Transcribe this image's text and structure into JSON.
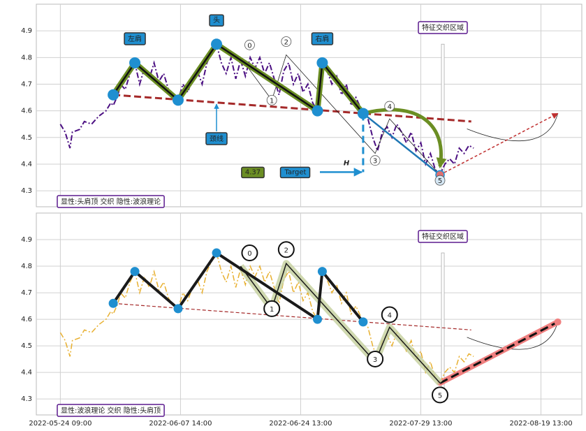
{
  "chart_data": [
    {
      "type": "line",
      "caption": "显性:头肩顶 交织 隐性:波浪理论",
      "labels": {
        "left_shoulder": "左肩",
        "head": "头",
        "right_shoulder": "右肩",
        "neckline": "颈线",
        "zone": "特征交织区域",
        "target_label": "Target",
        "height": "H"
      },
      "target": 4.37,
      "xlim": [
        -10,
        217
      ],
      "ylim": [
        4.24,
        5.0
      ],
      "xticks": [
        0,
        50,
        100,
        150,
        200
      ],
      "yticks": [
        4.3,
        4.4,
        4.5,
        4.6,
        4.7,
        4.8,
        4.9
      ],
      "grid": true,
      "price": {
        "color": "#4b0f82",
        "x": [
          0,
          2,
          4,
          5,
          8,
          10,
          13,
          16,
          19,
          21,
          22,
          24,
          25,
          27,
          29,
          31,
          33,
          35,
          37,
          39,
          41,
          43,
          45,
          47,
          49,
          51,
          53,
          55,
          57,
          59,
          61,
          63,
          65,
          67,
          69,
          71,
          73,
          75,
          77,
          79,
          81,
          83,
          85,
          87,
          89,
          91,
          93,
          95,
          97,
          99,
          101,
          103,
          105,
          107,
          109,
          111,
          113,
          115,
          117,
          119,
          121,
          123,
          126,
          128,
          130,
          132,
          134,
          136,
          138,
          140,
          142,
          144,
          146,
          148,
          150,
          152,
          154,
          156,
          158,
          160,
          162,
          164,
          166,
          168,
          170,
          172
        ],
        "values": [
          4.55,
          4.52,
          4.46,
          4.52,
          4.53,
          4.56,
          4.55,
          4.58,
          4.6,
          4.63,
          4.62,
          4.66,
          4.7,
          4.68,
          4.74,
          4.78,
          4.7,
          4.76,
          4.72,
          4.78,
          4.71,
          4.74,
          4.68,
          4.65,
          4.64,
          4.7,
          4.67,
          4.72,
          4.75,
          4.7,
          4.78,
          4.82,
          4.85,
          4.78,
          4.74,
          4.8,
          4.72,
          4.79,
          4.73,
          4.8,
          4.76,
          4.8,
          4.74,
          4.78,
          4.72,
          4.66,
          4.75,
          4.78,
          4.7,
          4.74,
          4.67,
          4.7,
          4.63,
          4.6,
          4.78,
          4.75,
          4.7,
          4.73,
          4.66,
          4.7,
          4.62,
          4.65,
          4.59,
          4.57,
          4.5,
          4.45,
          4.52,
          4.54,
          4.5,
          4.55,
          4.52,
          4.48,
          4.52,
          4.45,
          4.48,
          4.4,
          4.44,
          4.38,
          4.36,
          4.4,
          4.42,
          4.4,
          4.46,
          4.44,
          4.47,
          4.46
        ]
      },
      "pattern": {
        "color": "#6b8e23",
        "x": [
          22,
          31,
          49,
          65,
          107,
          109,
          126,
          158
        ],
        "values": [
          4.66,
          4.78,
          4.64,
          4.85,
          4.6,
          4.78,
          4.59,
          4.36
        ]
      },
      "neckline": {
        "color": "#a52a2a",
        "x": [
          22,
          171
        ],
        "values": [
          4.66,
          4.56
        ]
      },
      "wave": {
        "color": "#222222",
        "x": [
          75,
          88,
          94,
          131,
          137,
          158
        ],
        "values": [
          4.8,
          4.64,
          4.81,
          4.44,
          4.57,
          4.36
        ],
        "labels": [
          "0",
          "1",
          "2",
          "3",
          "4",
          "5"
        ]
      },
      "projection": {
        "color": "#c03030",
        "x": [
          158,
          207
        ],
        "values": [
          4.36,
          4.59
        ]
      }
    },
    {
      "type": "line",
      "caption": "显性:波浪理论 交织 隐性:头肩顶",
      "labels": {
        "zone": "特征交织区域"
      },
      "xlim": [
        -10,
        217
      ],
      "ylim": [
        4.24,
        5.0
      ],
      "xticks": [
        {
          "value": 0,
          "label": "2022-05-24 09:00"
        },
        {
          "value": 50,
          "label": "2022-06-07 14:00"
        },
        {
          "value": 100,
          "label": "2022-06-24 13:00"
        },
        {
          "value": 150,
          "label": "2022-07-29 13:00"
        },
        {
          "value": 200,
          "label": "2022-08-19 13:00"
        }
      ],
      "yticks": [
        4.3,
        4.4,
        4.5,
        4.6,
        4.7,
        4.8,
        4.9
      ],
      "grid": true,
      "price": {
        "color": "#e8b030",
        "x": [
          0,
          2,
          4,
          5,
          8,
          10,
          13,
          16,
          19,
          21,
          22,
          24,
          25,
          27,
          29,
          31,
          33,
          35,
          37,
          39,
          41,
          43,
          45,
          47,
          49,
          51,
          53,
          55,
          57,
          59,
          61,
          63,
          65,
          67,
          69,
          71,
          73,
          75,
          77,
          79,
          81,
          83,
          85,
          87,
          89,
          91,
          93,
          95,
          97,
          99,
          101,
          103,
          105,
          107,
          109,
          111,
          113,
          115,
          117,
          119,
          121,
          123,
          126,
          128,
          130,
          132,
          134,
          136,
          138,
          140,
          142,
          144,
          146,
          148,
          150,
          152,
          154,
          156,
          158,
          160,
          162,
          164,
          166,
          168,
          170,
          172
        ],
        "values": [
          4.55,
          4.52,
          4.46,
          4.52,
          4.53,
          4.56,
          4.55,
          4.58,
          4.6,
          4.63,
          4.62,
          4.66,
          4.7,
          4.68,
          4.74,
          4.78,
          4.7,
          4.76,
          4.72,
          4.78,
          4.71,
          4.74,
          4.68,
          4.65,
          4.64,
          4.7,
          4.67,
          4.72,
          4.75,
          4.7,
          4.78,
          4.82,
          4.85,
          4.78,
          4.74,
          4.8,
          4.72,
          4.79,
          4.73,
          4.8,
          4.76,
          4.8,
          4.74,
          4.78,
          4.72,
          4.66,
          4.75,
          4.78,
          4.7,
          4.74,
          4.67,
          4.7,
          4.63,
          4.6,
          4.78,
          4.75,
          4.7,
          4.73,
          4.66,
          4.7,
          4.62,
          4.65,
          4.59,
          4.57,
          4.5,
          4.45,
          4.52,
          4.54,
          4.5,
          4.55,
          4.52,
          4.48,
          4.52,
          4.45,
          4.48,
          4.4,
          4.44,
          4.38,
          4.36,
          4.4,
          4.42,
          4.4,
          4.46,
          4.44,
          4.47,
          4.46
        ]
      },
      "pattern": {
        "color": "#1a1a1a",
        "x": [
          22,
          31,
          49,
          65,
          107,
          109,
          126
        ],
        "values": [
          4.66,
          4.78,
          4.64,
          4.85,
          4.6,
          4.78,
          4.59
        ]
      },
      "neckline": {
        "color": "#a52a2a",
        "x": [
          22,
          171
        ],
        "values": [
          4.66,
          4.56
        ]
      },
      "wave": {
        "color": "#1a1a1a",
        "x": [
          75,
          88,
          94,
          131,
          137,
          158
        ],
        "values": [
          4.8,
          4.64,
          4.81,
          4.44,
          4.57,
          4.36
        ],
        "labels": [
          "0",
          "1",
          "2",
          "3",
          "4",
          "5"
        ]
      },
      "projection": {
        "color": "#f08080",
        "x": [
          158,
          207
        ],
        "values": [
          4.36,
          4.59
        ]
      }
    }
  ]
}
